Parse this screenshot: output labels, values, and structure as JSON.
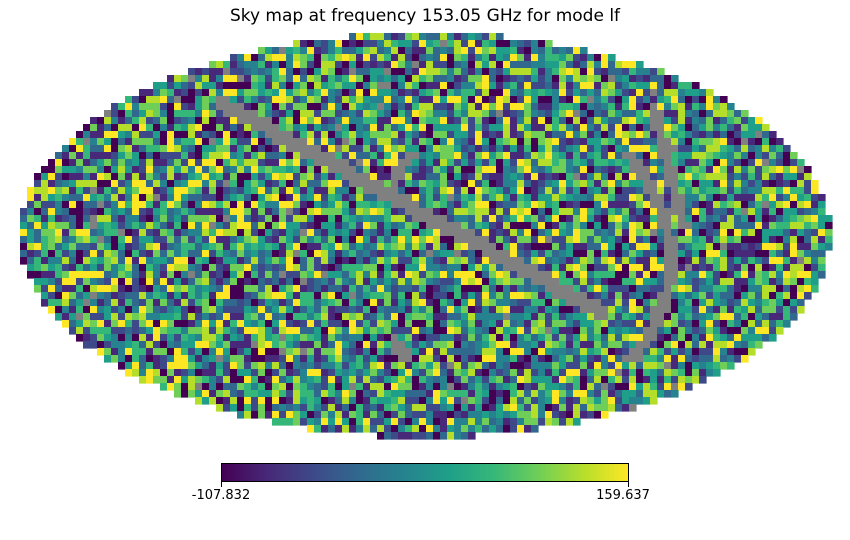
{
  "chart_data": {
    "type": "heatmap",
    "projection": "mollweide",
    "title": "Sky map at frequency 153.05 GHz for mode lf",
    "colormap": "viridis",
    "masked_color": "#808080",
    "colorbar": {
      "min": -107.832,
      "max": 159.637,
      "min_label": "-107.832",
      "max_label": "159.637",
      "orientation": "horizontal"
    },
    "value_distribution": "random noise (pixel values spread across the full colorbar range)",
    "mask_description": "grey masked strips (band crossing the map diagonally plus scattered arcs)"
  }
}
